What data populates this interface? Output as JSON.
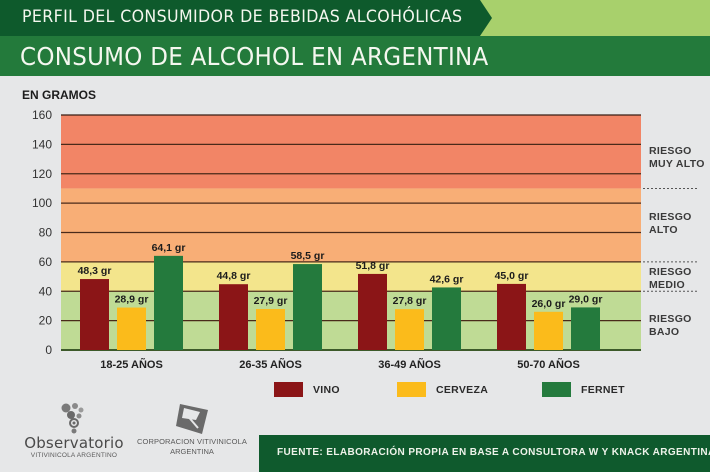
{
  "header": {
    "supertitle": "PERFIL DEL CONSUMIDOR DE BEBIDAS ALCOHÓLICAS",
    "title": "CONSUMO DE ALCOHOL EN ARGENTINA"
  },
  "risk_zones": [
    {
      "label_line1": "RIESGO",
      "label_line2": "MUY ALTO",
      "from": 110,
      "to": 160,
      "color": "#f28566"
    },
    {
      "label_line1": "RIESGO",
      "label_line2": "ALTO",
      "from": 60,
      "to": 110,
      "color": "#f8ae76"
    },
    {
      "label_line1": "RIESGO",
      "label_line2": "MEDIO",
      "from": 40,
      "to": 60,
      "color": "#f3e58c"
    },
    {
      "label_line1": "RIESGO",
      "label_line2": "BAJO",
      "from": 0,
      "to": 40,
      "color": "#bfdb95"
    }
  ],
  "chart_data": {
    "type": "bar",
    "title": "CONSUMO DE ALCOHOL EN ARGENTINA",
    "ylabel": "EN GRAMOS",
    "xlabel": "",
    "ylim": [
      0,
      160
    ],
    "yticks": [
      0,
      20,
      40,
      60,
      80,
      100,
      120,
      140,
      160
    ],
    "grid": true,
    "legend_position": "bottom",
    "categories": [
      "18-25 AÑOS",
      "26-35 AÑOS",
      "36-49 AÑOS",
      "50-70 AÑOS"
    ],
    "series": [
      {
        "name": "VINO",
        "color": "#8b1517",
        "values": [
          48.3,
          44.8,
          51.8,
          45.0
        ],
        "labels": [
          "48,3 gr",
          "44,8 gr",
          "51,8 gr",
          "45,0 gr"
        ]
      },
      {
        "name": "CERVEZA",
        "color": "#fbbb1b",
        "values": [
          28.9,
          27.9,
          27.8,
          26.0
        ],
        "labels": [
          "28,9 gr",
          "27,9 gr",
          "27,8 gr",
          "26,0 gr"
        ]
      },
      {
        "name": "FERNET",
        "color": "#247a3d",
        "values": [
          64.1,
          58.5,
          42.6,
          29.0
        ],
        "labels": [
          "64,1 gr",
          "58,5 gr",
          "42,6 gr",
          "29,0 gr"
        ]
      }
    ]
  },
  "logos": {
    "observatorio_name": "Observatorio",
    "observatorio_sub": "VITIVINICOLA ARGENTINO",
    "corporacion_line1": "CORPORACION VITIVINICOLA",
    "corporacion_line2": "ARGENTINA"
  },
  "footer": {
    "source": "FUENTE: ELABORACIÓN PROPIA EN BASE A CONSULTORA W Y KNACK ARGENTINA"
  }
}
